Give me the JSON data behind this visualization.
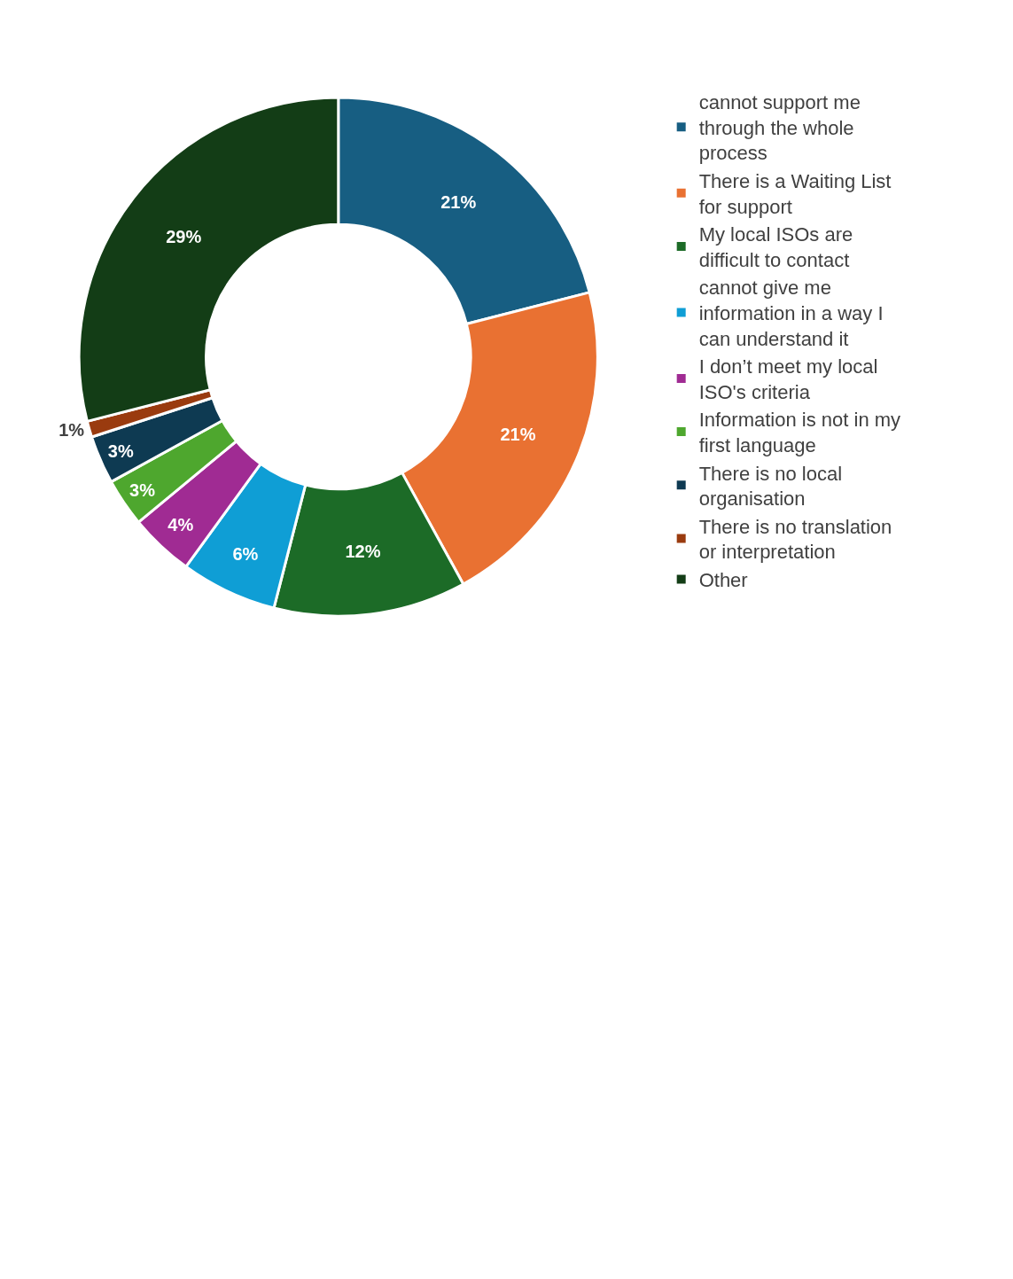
{
  "chart_data": {
    "type": "donut",
    "categories": [
      "cannot support me through the whole process",
      "There is a Waiting List for support",
      "My local ISOs are difficult to contact",
      "cannot give me information in a way I can understand it",
      "I don’t meet my local ISO's criteria",
      "Information is not in my first language",
      "There is no local organisation",
      "There is no translation or interpretation",
      "Other"
    ],
    "values": [
      21,
      21,
      12,
      6,
      4,
      3,
      3,
      1,
      29
    ],
    "value_labels": [
      "21%",
      "21%",
      "12%",
      "6%",
      "4%",
      "3%",
      "3%",
      "1%",
      "29%"
    ],
    "colors": [
      "#175e82",
      "#e97132",
      "#1c6b27",
      "#0f9ed5",
      "#a02b93",
      "#4ea72e",
      "#0e3a52",
      "#9a3b0f",
      "#133d16"
    ],
    "legend": "right"
  }
}
